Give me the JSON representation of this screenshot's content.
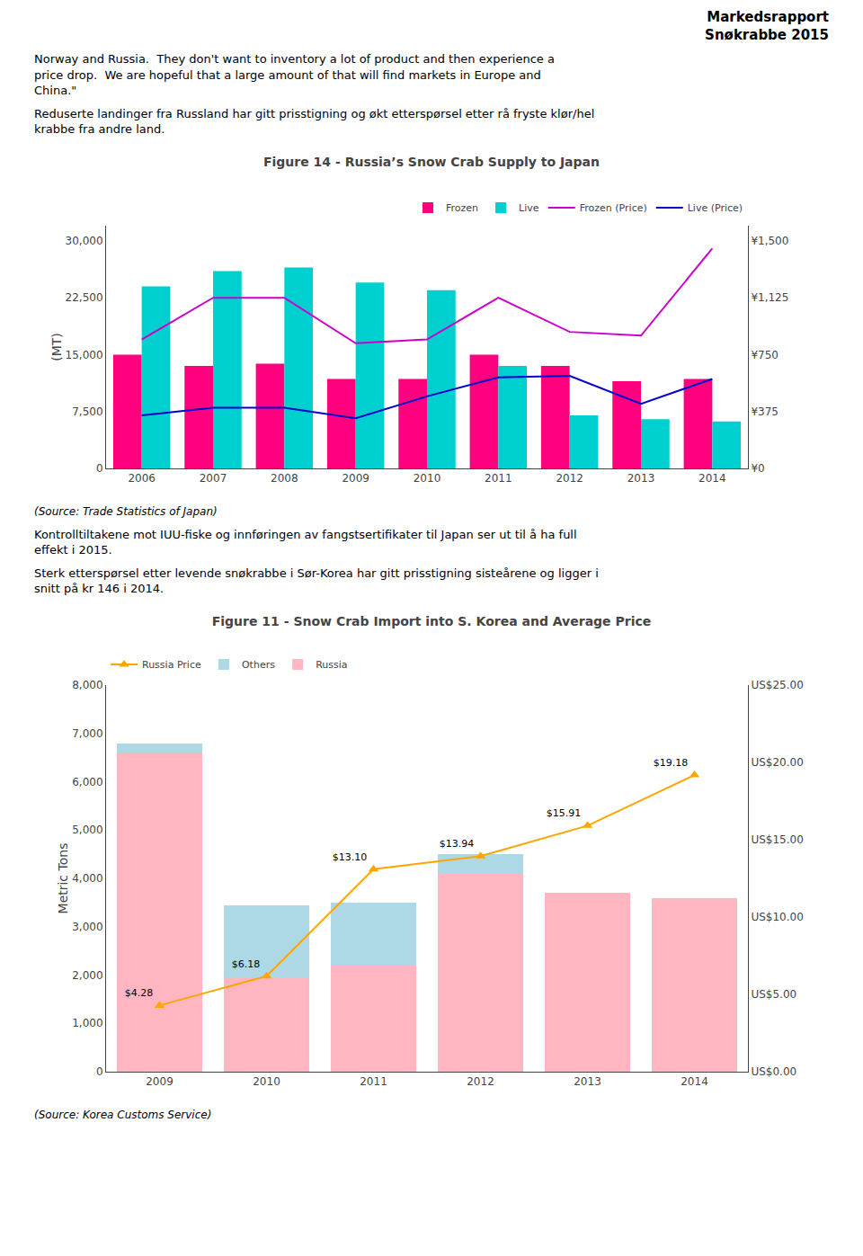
{
  "title": "Markedsrapport\nSnøkrabbe 2015",
  "annotations": [
    "Norway and Russia.  They don't want to inventory a lot of product and then experience a\nprice drop.  We are hopeful that a large amount of that will find markets in Europe and\nChina.\"",
    "Reduserte landinger fra Russland har gitt prisstigning og økt etterspørsel etter rå fryste klør/hel\nkrabbe fra andre land.",
    "Kontrolltiltakene mot IUU-fiske og innføringen av fangstsertifikater til Japan ser ut til å ha full\neffekt i 2015.",
    "Sterk etterspørsel etter levende snøkrabbe i Sør-Korea har gitt prisstigning sisteårene og ligger i\nsnitt på kr 146 i 2014."
  ],
  "chart_data": [
    {
      "type": "bar",
      "title": "Figure 14 - Russia’s Snow Crab Supply to Japan",
      "ylabel": "(MT)",
      "annotations": [
        "(Source: Trade Statistics of Japan)"
      ],
      "categories": [
        "2006",
        "2007",
        "2008",
        "2009",
        "2010",
        "2011",
        "2012",
        "2013",
        "2014"
      ],
      "series": [
        {
          "name": "Frozen",
          "color": "#FF007F",
          "values": [
            15000,
            13500,
            13800,
            11800,
            11800,
            15000,
            13500,
            11500,
            11800
          ]
        },
        {
          "name": "Live",
          "color": "#00CFCF",
          "values": [
            24000,
            26000,
            26500,
            24500,
            23500,
            13500,
            7000,
            6500,
            6200
          ]
        },
        {
          "name": "Frozen (Price)",
          "type": "line",
          "axis": "y2",
          "color": "#CC00CC",
          "values": [
            850,
            1125,
            1125,
            825,
            850,
            1125,
            900,
            875,
            1450
          ]
        },
        {
          "name": "Live (Price)",
          "type": "line",
          "axis": "y2",
          "color": "#0000CD",
          "values": [
            350,
            400,
            400,
            330,
            475,
            600,
            610,
            425,
            590
          ]
        }
      ],
      "ylim": [
        0,
        32000
      ],
      "yticks": [
        0,
        {
          "value": 7500,
          "label": "7,500"
        },
        {
          "value": 15000,
          "label": "15,000"
        },
        {
          "value": 22500,
          "label": "22,500"
        },
        {
          "value": 30000,
          "label": "30,000"
        }
      ],
      "y2lim": [
        0,
        1600
      ],
      "y2ticks": [
        {
          "value": 0,
          "label": "¥0"
        },
        {
          "value": 375,
          "label": "¥375"
        },
        {
          "value": 750,
          "label": "¥750"
        },
        {
          "value": 1125,
          "label": "¥1,125"
        },
        {
          "value": 1500,
          "label": "¥1,500"
        }
      ],
      "stacked": false,
      "grid": false,
      "legend": "upper right"
    },
    {
      "type": "bar",
      "title": "Figure 11 - Snow Crab Import into S. Korea and Average Price",
      "ylabel": "Metric Tons",
      "annotations": [
        "(Source: Korea Customs Service)"
      ],
      "categories": [
        "2009",
        "2010",
        "2011",
        "2012",
        "2013",
        "2014"
      ],
      "series": [
        {
          "name": "Russia",
          "color": "#FFB6C1",
          "values": [
            6600,
            1950,
            2200,
            4100,
            3700,
            3600
          ]
        },
        {
          "name": "Others",
          "color": "#ADD8E6",
          "values": [
            200,
            1500,
            1300,
            400,
            0,
            0
          ]
        },
        {
          "name": "Russia Price",
          "type": "line",
          "axis": "y2",
          "color": "#FFA500",
          "marker": "triangle-up",
          "values": [
            4.28,
            6.18,
            13.1,
            13.94,
            15.91,
            19.18
          ],
          "value_labels": [
            "$4.28",
            "$6.18",
            "$13.10",
            "$13.94",
            "$15.91",
            "$19.18"
          ],
          "data_labels": true
        }
      ],
      "ylim": [
        0,
        8000
      ],
      "yticks": [
        0,
        {
          "value": 1000,
          "label": "1,000"
        },
        {
          "value": 2000,
          "label": "2,000"
        },
        {
          "value": 3000,
          "label": "3,000"
        },
        {
          "value": 4000,
          "label": "4,000"
        },
        {
          "value": 5000,
          "label": "5,000"
        },
        {
          "value": 6000,
          "label": "6,000"
        },
        {
          "value": 7000,
          "label": "7,000"
        },
        {
          "value": 8000,
          "label": "8,000"
        }
      ],
      "y2lim": [
        0,
        25
      ],
      "y2ticks": [
        {
          "value": 0,
          "label": "US$0.00"
        },
        {
          "value": 5,
          "label": "US$5.00"
        },
        {
          "value": 10,
          "label": "US$10.00"
        },
        {
          "value": 15,
          "label": "US$15.00"
        },
        {
          "value": 20,
          "label": "US$20.00"
        },
        {
          "value": 25,
          "label": "US$25.00"
        }
      ],
      "stacked": true,
      "grid": false,
      "legend": "upper left"
    }
  ]
}
